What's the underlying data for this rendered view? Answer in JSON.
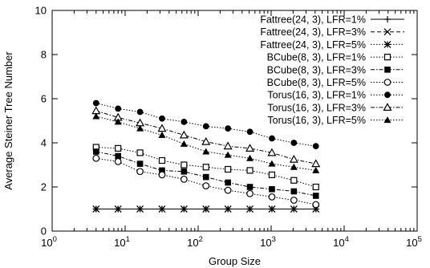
{
  "chart_data": {
    "type": "line",
    "title": "",
    "xlabel": "Group Size",
    "ylabel": "Average Steiner Tree Number",
    "xscale": "log",
    "xlim": [
      1,
      100000
    ],
    "ylim": [
      0,
      10
    ],
    "x_ticks": [
      1,
      10,
      100,
      1000,
      10000,
      100000
    ],
    "x_tick_labels": [
      {
        "base": "10",
        "exp": "0"
      },
      {
        "base": "10",
        "exp": "1"
      },
      {
        "base": "10",
        "exp": "2"
      },
      {
        "base": "10",
        "exp": "3"
      },
      {
        "base": "10",
        "exp": "4"
      },
      {
        "base": "10",
        "exp": "5"
      }
    ],
    "y_ticks": [
      0,
      2,
      4,
      6,
      8,
      10
    ],
    "y_tick_labels": [
      "0",
      "2",
      "4",
      "6",
      "8",
      "10"
    ],
    "grid": false,
    "legend_position": "top-right",
    "x": [
      4,
      8,
      16,
      32,
      64,
      128,
      256,
      512,
      1024,
      2048,
      4096
    ],
    "series": [
      {
        "name": "Fattree(24, 3), LFR=1%",
        "marker": "plus",
        "dash": "solid",
        "values": [
          1,
          1,
          1,
          1,
          1,
          1,
          1,
          1,
          1,
          1,
          1
        ]
      },
      {
        "name": "Fattree(24, 3), LFR=3%",
        "marker": "x",
        "dash": "dash",
        "values": [
          1,
          1,
          1,
          1,
          1,
          1,
          1,
          1,
          1,
          1,
          1
        ]
      },
      {
        "name": "Fattree(24, 3), LFR=5%",
        "marker": "star",
        "dash": "dot",
        "values": [
          1,
          1,
          1,
          1,
          1,
          1,
          1,
          1,
          1,
          1,
          1
        ]
      },
      {
        "name": "BCube(8, 3), LFR=1%",
        "marker": "square-open",
        "dash": "dot",
        "values": [
          3.8,
          3.75,
          3.55,
          3.2,
          3.0,
          2.9,
          2.8,
          2.75,
          2.55,
          2.3,
          2.0
        ]
      },
      {
        "name": "BCube(8, 3), LFR=3%",
        "marker": "square-filled",
        "dash": "dashdot",
        "values": [
          3.6,
          3.4,
          3.05,
          2.75,
          2.7,
          2.45,
          2.2,
          2.0,
          1.9,
          1.8,
          1.6
        ]
      },
      {
        "name": "BCube(8, 3), LFR=5%",
        "marker": "circle-open",
        "dash": "dot",
        "values": [
          3.3,
          3.15,
          2.7,
          2.55,
          2.35,
          2.05,
          1.85,
          1.7,
          1.55,
          1.4,
          1.2
        ]
      },
      {
        "name": "Torus(16, 3), LFR=1%",
        "marker": "circle-filled",
        "dash": "dot",
        "values": [
          5.8,
          5.55,
          5.4,
          5.1,
          4.95,
          4.75,
          4.65,
          4.5,
          4.2,
          4.0,
          3.85
        ]
      },
      {
        "name": "Torus(16, 3), LFR=3%",
        "marker": "triangle-open",
        "dash": "dashdot",
        "values": [
          5.45,
          5.15,
          4.9,
          4.65,
          4.35,
          4.05,
          3.85,
          3.75,
          3.55,
          3.25,
          3.05
        ]
      },
      {
        "name": "Torus(16, 3), LFR=5%",
        "marker": "triangle-filled",
        "dash": "dot",
        "values": [
          5.2,
          4.95,
          4.65,
          4.35,
          3.95,
          3.6,
          3.45,
          3.3,
          3.05,
          2.9,
          2.75
        ]
      }
    ]
  }
}
